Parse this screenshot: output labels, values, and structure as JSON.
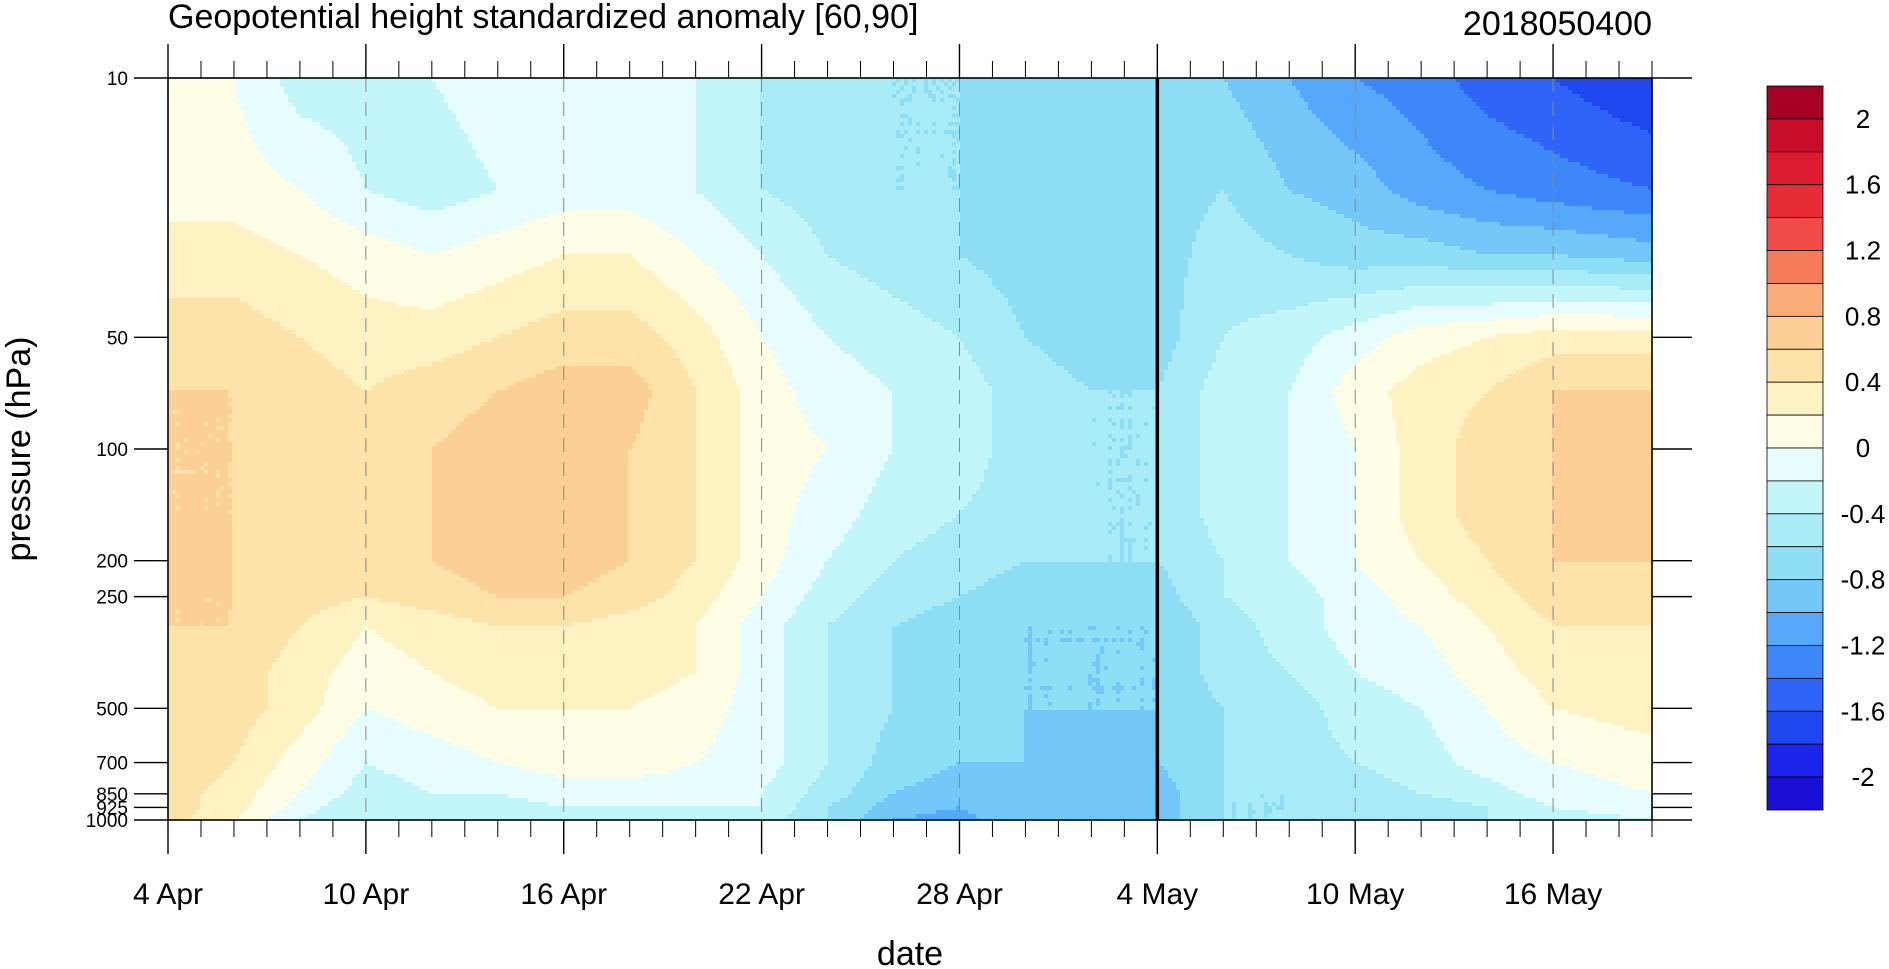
{
  "chart_data": {
    "type": "heatmap",
    "subtype": "filled-contour",
    "title": "Geopotential height standardized anomaly [60,90]",
    "subtitle_right": "2018050400",
    "xlabel": "date",
    "ylabel": "pressure (hPa)",
    "x_tick_labels": [
      "4 Apr",
      "10 Apr",
      "16 Apr",
      "22 Apr",
      "28 Apr",
      "4 May",
      "10 May",
      "16 May"
    ],
    "x_tick_day_offsets": [
      0,
      6,
      12,
      18,
      24,
      30,
      36,
      42
    ],
    "x_range_days": [
      0,
      45
    ],
    "y_tick_labels": [
      "10",
      "50",
      "100",
      "200",
      "250",
      "500",
      "700",
      "850",
      "925",
      "1000"
    ],
    "y_tick_values": [
      10,
      50,
      100,
      200,
      250,
      500,
      700,
      850,
      925,
      1000
    ],
    "y_range": [
      10,
      1000
    ],
    "y_scale": "log",
    "y_inverted": true,
    "reference_line_day": 30,
    "colorbar": {
      "levels": [
        -2.2,
        -2,
        -1.8,
        -1.6,
        -1.4,
        -1.2,
        -1,
        -0.8,
        -0.6,
        -0.4,
        -0.2,
        0,
        0.2,
        0.4,
        0.6,
        0.8,
        1,
        1.2,
        1.4,
        1.6,
        1.8,
        2,
        2.2
      ],
      "colors": [
        "#1a0fd4",
        "#1c23ec",
        "#2147f0",
        "#2e64f7",
        "#3e87f9",
        "#56a8fa",
        "#72c6f8",
        "#8edff6",
        "#a9ecf8",
        "#c3f6fb",
        "#e6fcfd",
        "#fffde6",
        "#fff2c2",
        "#fde2aa",
        "#fbcf96",
        "#f9ad78",
        "#f57a58",
        "#f04b48",
        "#e82c37",
        "#dc1a30",
        "#c80e2a",
        "#a60024"
      ],
      "labels": [
        "2",
        "1.6",
        "1.2",
        "0.8",
        "0.4",
        "0",
        "-0.4",
        "-0.8",
        "-1.2",
        "-1.6",
        "-2"
      ]
    },
    "grid_columns_days": [
      0,
      2,
      4,
      6,
      8,
      10,
      12,
      14,
      16,
      18,
      20,
      22,
      24,
      26,
      28,
      30,
      32,
      34,
      36,
      38,
      40,
      42,
      45
    ],
    "grid_rows_hPa": [
      10,
      20,
      30,
      50,
      70,
      100,
      150,
      200,
      250,
      300,
      400,
      500,
      700,
      850,
      925,
      1000
    ],
    "values": [
      [
        0.1,
        0.0,
        -0.3,
        -0.3,
        -0.2,
        -0.1,
        0.0,
        0.0,
        -0.2,
        -0.4,
        -0.6,
        -0.6,
        -0.6,
        -0.7,
        -0.8,
        -0.8,
        -0.8,
        -1.0,
        -1.2,
        -1.3,
        -1.5,
        -1.6,
        -1.8
      ],
      [
        0.1,
        0.1,
        0.0,
        -0.2,
        -0.3,
        -0.2,
        -0.1,
        -0.1,
        -0.2,
        -0.4,
        -0.5,
        -0.6,
        -0.6,
        -0.7,
        -0.7,
        -0.7,
        -0.6,
        -0.8,
        -0.9,
        -1.1,
        -1.2,
        -1.3,
        -1.4
      ],
      [
        0.3,
        0.3,
        0.2,
        0.1,
        0.0,
        0.1,
        0.2,
        0.2,
        0.0,
        -0.2,
        -0.4,
        -0.5,
        -0.6,
        -0.7,
        -0.7,
        -0.7,
        -0.5,
        -0.6,
        -0.7,
        -0.7,
        -0.8,
        -0.8,
        -0.9
      ],
      [
        0.5,
        0.5,
        0.4,
        0.3,
        0.3,
        0.4,
        0.5,
        0.5,
        0.3,
        0.0,
        -0.2,
        -0.3,
        -0.4,
        -0.6,
        -0.7,
        -0.7,
        -0.4,
        -0.3,
        -0.1,
        0.1,
        0.2,
        0.3,
        0.3
      ],
      [
        0.6,
        0.6,
        0.5,
        0.4,
        0.5,
        0.6,
        0.7,
        0.7,
        0.4,
        0.1,
        -0.1,
        -0.2,
        -0.3,
        -0.5,
        -0.6,
        -0.6,
        -0.3,
        -0.2,
        0.1,
        0.3,
        0.4,
        0.6,
        0.6
      ],
      [
        0.6,
        0.6,
        0.5,
        0.4,
        0.6,
        0.7,
        0.7,
        0.6,
        0.4,
        0.1,
        0.0,
        -0.2,
        -0.3,
        -0.5,
        -0.6,
        -0.6,
        -0.3,
        -0.2,
        0.0,
        0.3,
        0.5,
        0.6,
        0.7
      ],
      [
        0.6,
        0.6,
        0.5,
        0.4,
        0.6,
        0.7,
        0.7,
        0.6,
        0.4,
        0.1,
        -0.1,
        -0.3,
        -0.4,
        -0.5,
        -0.6,
        -0.6,
        -0.3,
        -0.2,
        0.0,
        0.3,
        0.5,
        0.6,
        0.7
      ],
      [
        0.7,
        0.6,
        0.5,
        0.4,
        0.6,
        0.7,
        0.7,
        0.6,
        0.4,
        0.1,
        -0.2,
        -0.4,
        -0.5,
        -0.6,
        -0.6,
        -0.6,
        -0.4,
        -0.2,
        0.0,
        0.2,
        0.4,
        0.6,
        0.6
      ],
      [
        0.6,
        0.6,
        0.5,
        0.4,
        0.5,
        0.6,
        0.6,
        0.5,
        0.3,
        0.0,
        -0.3,
        -0.5,
        -0.6,
        -0.7,
        -0.7,
        -0.7,
        -0.4,
        -0.3,
        -0.1,
        0.1,
        0.3,
        0.5,
        0.5
      ],
      [
        0.6,
        0.6,
        0.4,
        0.2,
        0.3,
        0.4,
        0.4,
        0.3,
        0.2,
        -0.1,
        -0.4,
        -0.6,
        -0.7,
        -0.8,
        -0.8,
        -0.8,
        -0.5,
        -0.3,
        -0.1,
        0.0,
        0.2,
        0.4,
        0.4
      ],
      [
        0.6,
        0.5,
        0.3,
        0.1,
        0.2,
        0.3,
        0.3,
        0.3,
        0.2,
        -0.1,
        -0.4,
        -0.6,
        -0.7,
        -0.8,
        -0.8,
        -0.8,
        -0.5,
        -0.4,
        -0.2,
        -0.1,
        0.1,
        0.3,
        0.3
      ],
      [
        0.6,
        0.5,
        0.3,
        0.0,
        0.1,
        0.2,
        0.2,
        0.2,
        0.1,
        -0.1,
        -0.4,
        -0.6,
        -0.7,
        -0.8,
        -0.8,
        -0.8,
        -0.6,
        -0.5,
        -0.3,
        -0.2,
        0.0,
        0.2,
        0.3
      ],
      [
        0.6,
        0.4,
        0.1,
        -0.2,
        -0.1,
        0.0,
        0.1,
        0.1,
        0.0,
        -0.1,
        -0.4,
        -0.7,
        -0.8,
        -0.8,
        -0.9,
        -0.8,
        -0.6,
        -0.5,
        -0.4,
        -0.3,
        -0.1,
        0.0,
        0.1
      ],
      [
        0.5,
        0.3,
        0.0,
        -0.3,
        -0.2,
        -0.2,
        -0.1,
        -0.1,
        -0.1,
        -0.2,
        -0.5,
        -0.8,
        -0.9,
        -0.8,
        -1.0,
        -0.9,
        -0.6,
        -0.6,
        -0.5,
        -0.4,
        -0.3,
        -0.1,
        0.0
      ],
      [
        0.5,
        0.3,
        -0.1,
        -0.4,
        -0.3,
        -0.3,
        -0.2,
        -0.2,
        -0.2,
        -0.2,
        -0.6,
        -0.9,
        -1.0,
        -0.8,
        -1.0,
        -0.9,
        -0.6,
        -0.6,
        -0.5,
        -0.5,
        -0.4,
        -0.2,
        -0.1
      ],
      [
        0.5,
        0.2,
        -0.2,
        -0.4,
        -0.4,
        -0.3,
        -0.3,
        -0.3,
        -0.2,
        -0.3,
        -0.6,
        -1.0,
        -1.1,
        -0.8,
        -1.0,
        -0.9,
        -0.6,
        -0.6,
        -0.6,
        -0.5,
        -0.4,
        -0.3,
        -0.2
      ]
    ]
  }
}
